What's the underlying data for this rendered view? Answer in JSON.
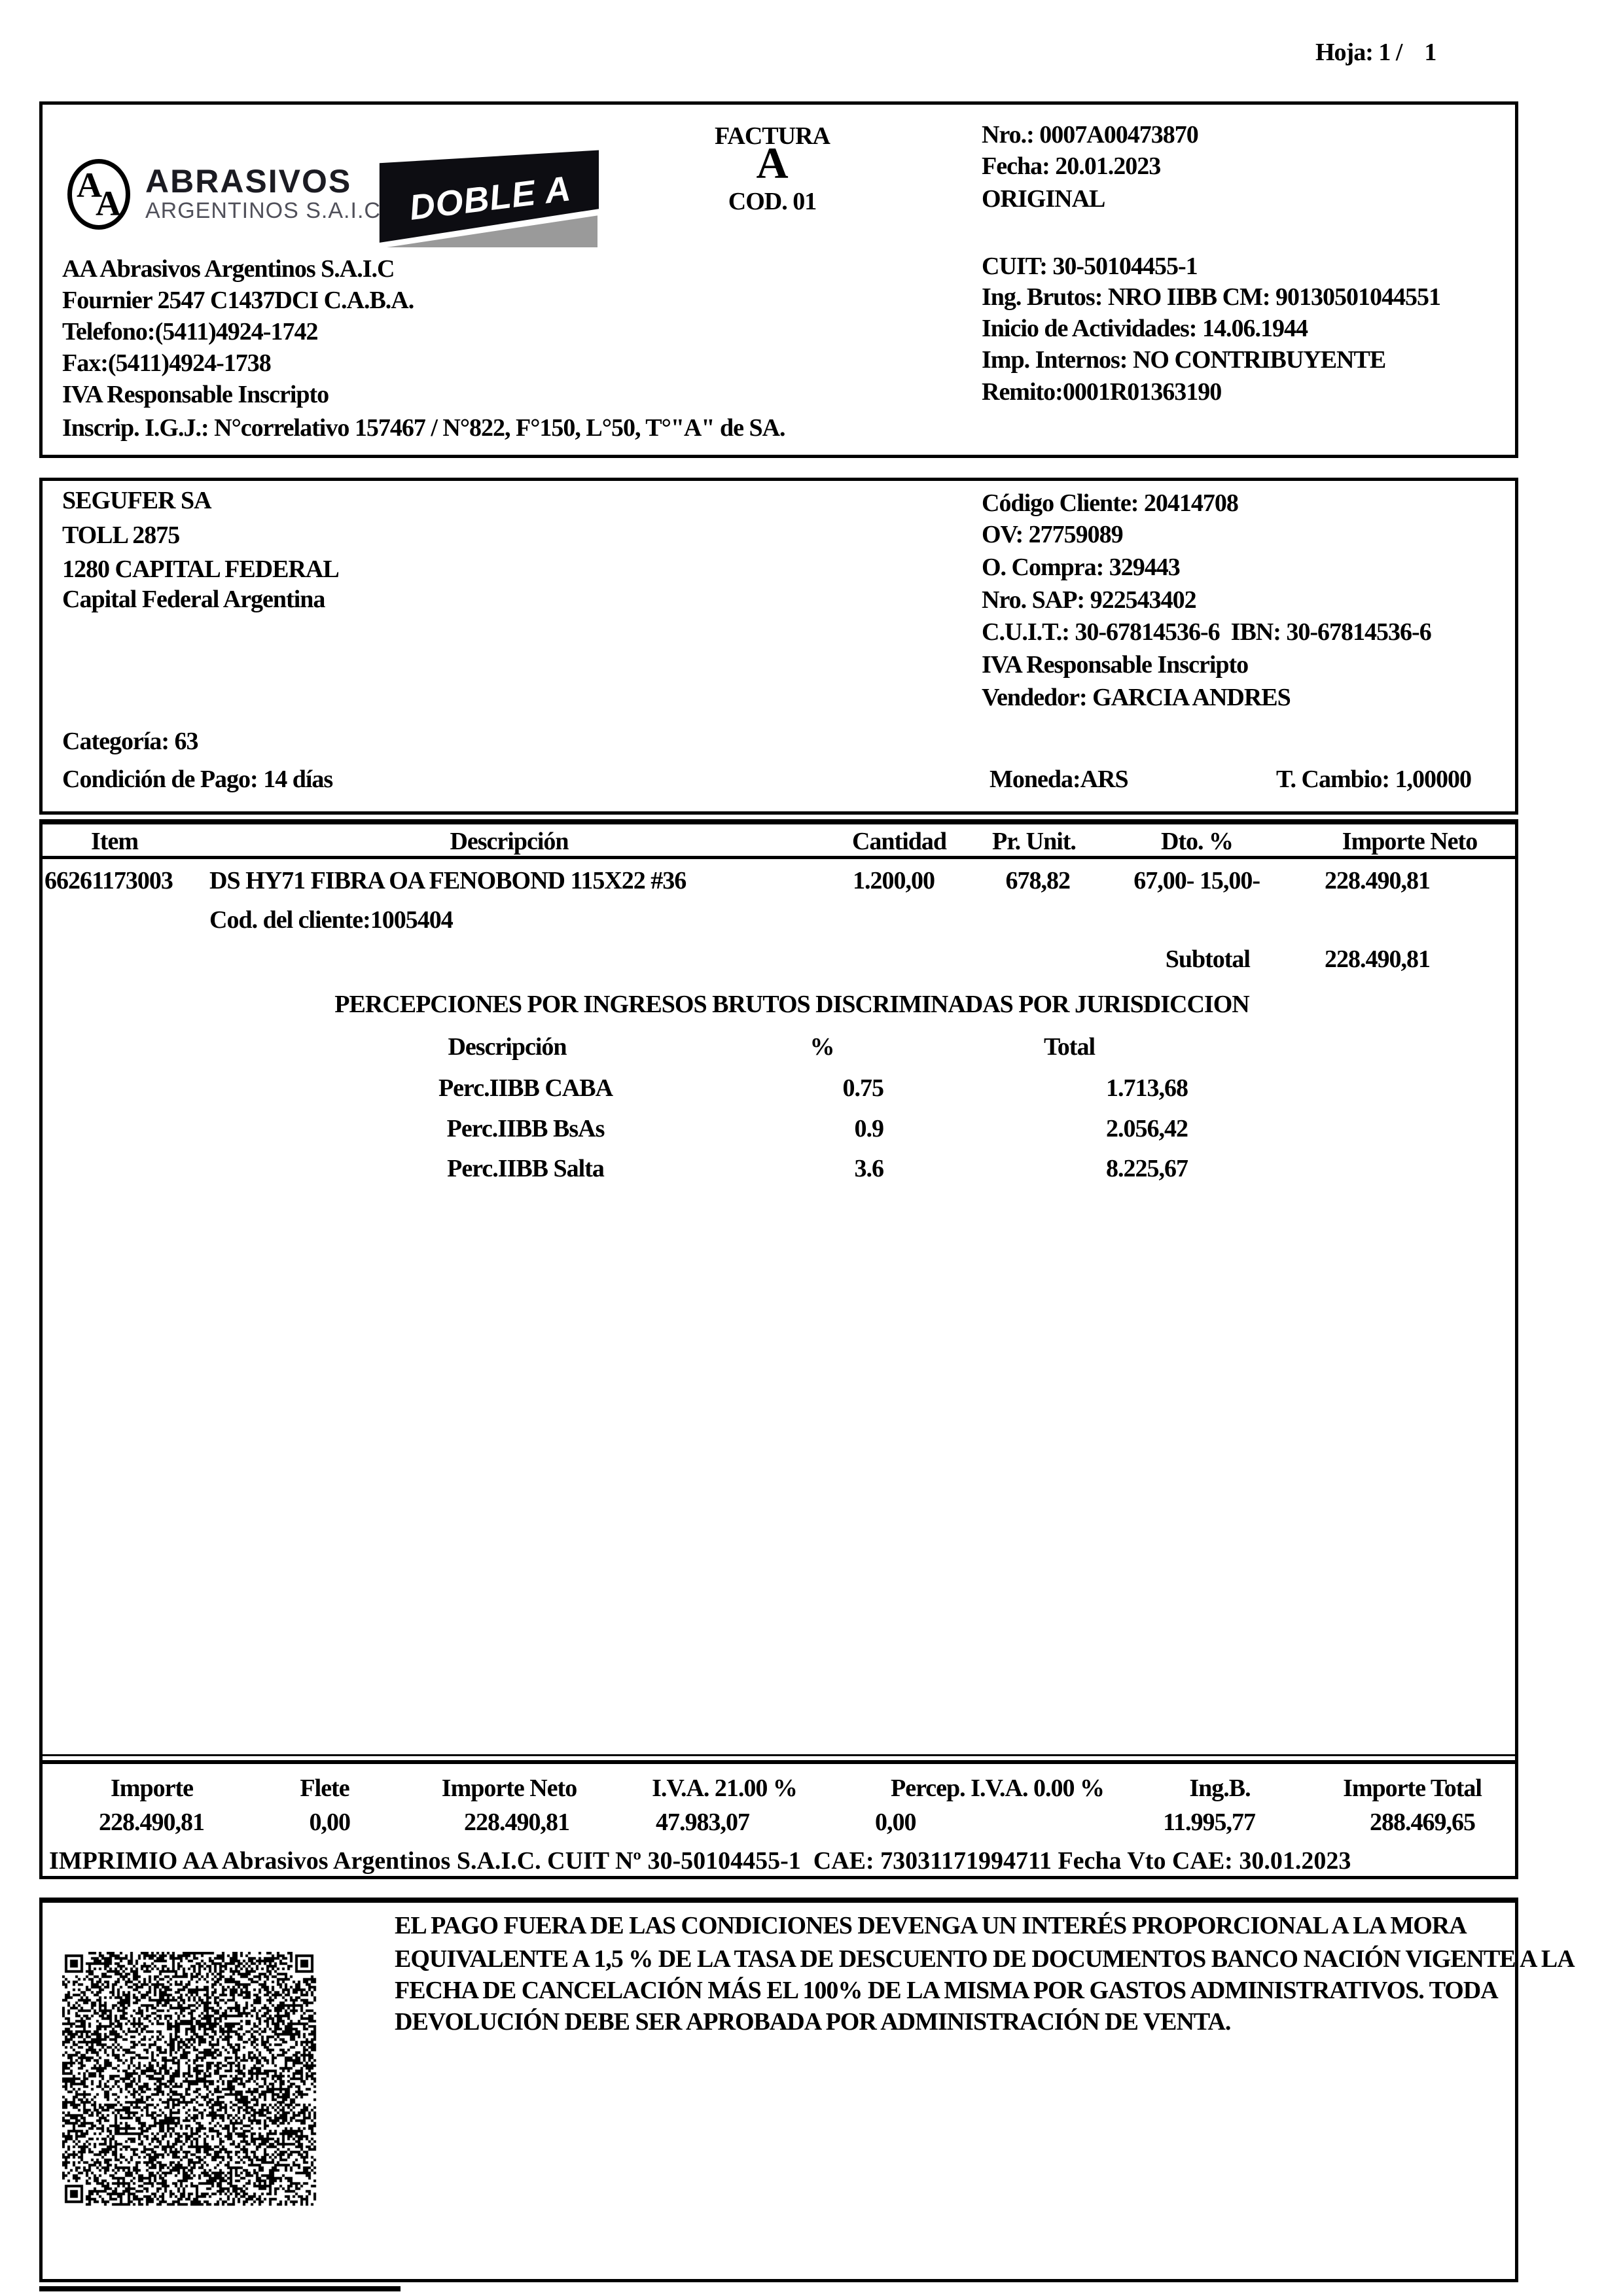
{
  "page": {
    "hoja": "Hoja: 1 /    1"
  },
  "brand": {
    "monogram_a1": "A",
    "monogram_a2": "A",
    "name_line1": "ABRASIVOS",
    "name_line2": "ARGENTINOS S.A.I.C.",
    "badge_text": "DOBLE A",
    "colors": {
      "logo_dark": "#1b1b22",
      "logo_gray": "#50505a",
      "badge_gray": "#9a9a9a",
      "ink": "#000000",
      "paper": "#ffffff"
    }
  },
  "invoice": {
    "doc_type": "FACTURA",
    "letter": "A",
    "code": "COD. 01",
    "meta": [
      "Nro.: 0007A00473870",
      "Fecha: 20.01.2023",
      "ORIGINAL"
    ]
  },
  "company": {
    "left": [
      "AA Abrasivos Argentinos S.A.I.C",
      "Fournier 2547 C1437DCI C.A.B.A.",
      "Telefono:(5411)4924-1742",
      "Fax:(5411)4924-1738",
      "IVA Responsable Inscripto",
      "Inscrip. I.G.J.: N°correlativo 157467 / N°822, F°150, L°50, T°\"A\" de SA."
    ],
    "right": [
      "CUIT: 30-50104455-1",
      "Ing. Brutos: NRO IIBB CM: 90130501044551",
      "Inicio de Actividades: 14.06.1944",
      "Imp. Internos: NO CONTRIBUYENTE",
      "Remito:0001R01363190"
    ]
  },
  "client": {
    "left": [
      "SEGUFER SA",
      "TOLL 2875",
      "1280 CAPITAL FEDERAL",
      "Capital Federal Argentina"
    ],
    "right": [
      "Código Cliente: 20414708",
      "OV: 27759089",
      "O. Compra: 329443",
      "Nro. SAP: 922543402",
      "C.U.I.T.: 30-67814536-6  IBN: 30-67814536-6",
      "IVA Responsable Inscripto",
      "Vendedor: GARCIA ANDRES"
    ],
    "categoria": "Categoría: 63",
    "condicion_pago": "Condición de Pago: 14 días",
    "moneda": "Moneda:ARS",
    "t_cambio": "T. Cambio: 1,00000"
  },
  "items": {
    "headers": [
      "Item",
      "Descripción",
      "Cantidad",
      "Pr. Unit.",
      "Dto. %",
      "Importe Neto"
    ],
    "row": {
      "item": "66261173003",
      "descripcion": "DS HY71 FIBRA OA FENOBOND 115X22 #36",
      "cantidad": "1.200,00",
      "pr_unit": "678,82",
      "dto": "67,00- 15,00-",
      "importe_neto": "228.490,81",
      "cod_cliente": "Cod. del cliente:1005404"
    },
    "subtotal_label": "Subtotal",
    "subtotal_value": "228.490,81"
  },
  "percepciones": {
    "title": "PERCEPCIONES POR INGRESOS BRUTOS DISCRIMINADAS POR JURISDICCION",
    "headers": [
      "Descripción",
      "%",
      "Total"
    ],
    "rows": [
      {
        "descripcion": "Perc.IIBB CABA",
        "pct": "0.75",
        "total": "1.713,68"
      },
      {
        "descripcion": "Perc.IIBB BsAs",
        "pct": "0.9",
        "total": "2.056,42"
      },
      {
        "descripcion": "Perc.IIBB Salta",
        "pct": "3.6",
        "total": "8.225,67"
      }
    ]
  },
  "totals": {
    "headers": [
      "Importe",
      "Flete",
      "Importe Neto",
      "I.V.A. 21.00 %",
      "Percep. I.V.A. 0.00 %",
      "Ing.B.",
      "Importe Total"
    ],
    "values": [
      "228.490,81",
      "0,00",
      "228.490,81",
      "47.983,07",
      "0,00",
      "11.995,77",
      "288.469,65"
    ],
    "imprimio": "IMPRIMIO AA Abrasivos Argentinos S.A.I.C. CUIT Nº 30-50104455-1  CAE: 73031171994711 Fecha Vto CAE: 30.01.2023"
  },
  "footer": {
    "legal": [
      "EL PAGO FUERA DE LAS CONDICIONES DEVENGA UN INTERÉS PROPORCIONAL A LA MORA",
      "EQUIVALENTE A 1,5 % DE LA TASA DE DESCUENTO DE DOCUMENTOS BANCO NACIÓN VIGENTE A LA",
      "FECHA DE CANCELACIÓN MÁS EL 100% DE LA MISMA POR GASTOS ADMINISTRATIVOS. TODA",
      "DEVOLUCIÓN DEBE SER APROBADA POR ADMINISTRACIÓN DE VENTA."
    ]
  }
}
